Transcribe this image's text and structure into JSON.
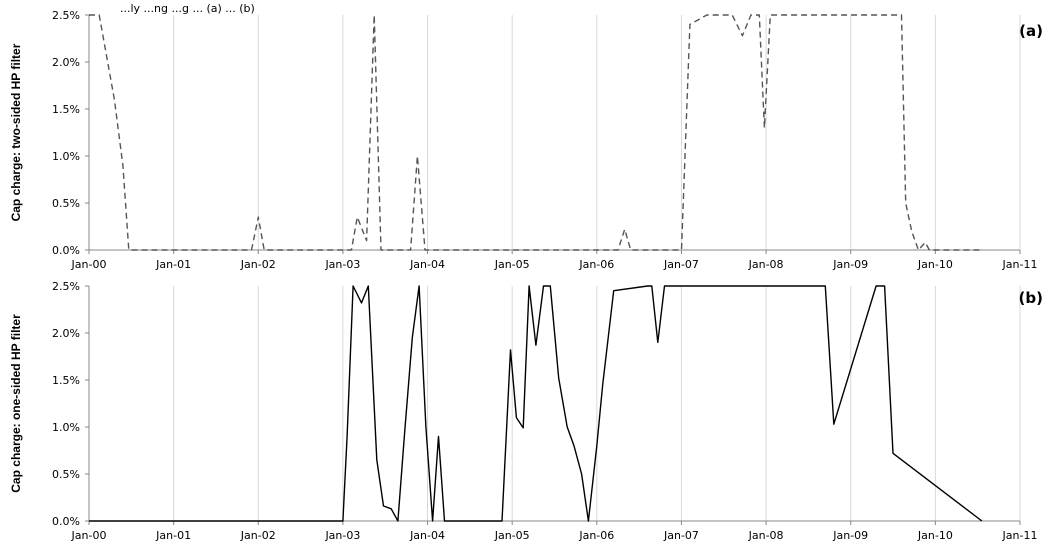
{
  "caption_fragment": "...ly ...ng ...g ... (a) ... (b)",
  "chart_data": [
    {
      "type": "line",
      "panel_label": "(a)",
      "ylabel": "Cap charge: two-sided HP filter",
      "line_style": "dashed",
      "line_color": "#555555",
      "xlim": [
        2000.0,
        2011.0
      ],
      "ylim": [
        0,
        2.5
      ],
      "x_ticks": [
        "Jan-00",
        "Jan-01",
        "Jan-02",
        "Jan-03",
        "Jan-04",
        "Jan-05",
        "Jan-06",
        "Jan-07",
        "Jan-08",
        "Jan-09",
        "Jan-10",
        "Jan-11"
      ],
      "y_ticks": [
        "0.0%",
        "0.5%",
        "1.0%",
        "1.5%",
        "2.0%",
        "2.5%"
      ],
      "grid": "vertical",
      "series": [
        {
          "x": [
            2000.0,
            2000.12,
            2000.3,
            2000.4,
            2000.47,
            2001.92,
            2002.0,
            2002.07,
            2003.1,
            2003.17,
            2003.28,
            2003.37,
            2003.45,
            2003.8,
            2003.88,
            2003.97,
            2004.05,
            2006.25,
            2006.33,
            2006.4,
            2007.0,
            2007.1,
            2007.2,
            2007.3,
            2007.6,
            2007.72,
            2007.82,
            2007.92,
            2007.98,
            2008.05,
            2008.15,
            2009.6,
            2009.65,
            2009.72,
            2009.8,
            2009.88,
            2009.93,
            2010.55
          ],
          "y": [
            2.5,
            2.5,
            1.6,
            0.9,
            0.0,
            0.0,
            0.35,
            0.0,
            0.0,
            0.35,
            0.1,
            2.5,
            0.0,
            0.0,
            1.0,
            0.0,
            0.0,
            0.0,
            0.22,
            0.0,
            0.0,
            2.4,
            2.45,
            2.5,
            2.5,
            2.28,
            2.5,
            2.5,
            1.3,
            2.5,
            2.5,
            2.5,
            0.5,
            0.2,
            0.0,
            0.08,
            0.0,
            0.0
          ]
        }
      ]
    },
    {
      "type": "line",
      "panel_label": "(b)",
      "ylabel": "Cap charge: one-sided HP filter",
      "line_style": "solid",
      "line_color": "#000000",
      "xlim": [
        2000.0,
        2011.0
      ],
      "ylim": [
        0,
        2.5
      ],
      "x_ticks": [
        "Jan-00",
        "Jan-01",
        "Jan-02",
        "Jan-03",
        "Jan-04",
        "Jan-05",
        "Jan-06",
        "Jan-07",
        "Jan-08",
        "Jan-09",
        "Jan-10",
        "Jan-11"
      ],
      "y_ticks": [
        "0.0%",
        "0.5%",
        "1.0%",
        "1.5%",
        "2.0%",
        "2.5%"
      ],
      "grid": "vertical",
      "series": [
        {
          "x": [
            2000.0,
            2003.0,
            2003.05,
            2003.12,
            2003.22,
            2003.3,
            2003.4,
            2003.48,
            2003.57,
            2003.65,
            2003.73,
            2003.82,
            2003.9,
            2003.98,
            2004.06,
            2004.13,
            2004.2,
            2004.8,
            2004.88,
            2004.98,
            2005.05,
            2005.13,
            2005.2,
            2005.28,
            2005.37,
            2005.45,
            2005.55,
            2005.65,
            2005.73,
            2005.82,
            2005.9,
            2006.0,
            2006.07,
            2006.2,
            2006.6,
            2006.65,
            2006.72,
            2006.8,
            2008.6,
            2008.7,
            2008.8,
            2009.3,
            2009.4,
            2009.5,
            2010.55
          ],
          "y": [
            0.0,
            0.0,
            0.9,
            2.5,
            2.32,
            2.5,
            0.65,
            0.16,
            0.13,
            0.0,
            0.95,
            1.95,
            2.5,
            1.0,
            0.0,
            0.9,
            0.0,
            0.0,
            0.0,
            1.82,
            1.1,
            0.99,
            2.5,
            1.87,
            2.5,
            2.5,
            1.52,
            1.0,
            0.8,
            0.5,
            0.0,
            0.8,
            1.45,
            2.45,
            2.5,
            2.5,
            1.9,
            2.5,
            2.5,
            2.5,
            1.03,
            2.5,
            2.5,
            0.72,
            0.0
          ]
        }
      ]
    }
  ]
}
